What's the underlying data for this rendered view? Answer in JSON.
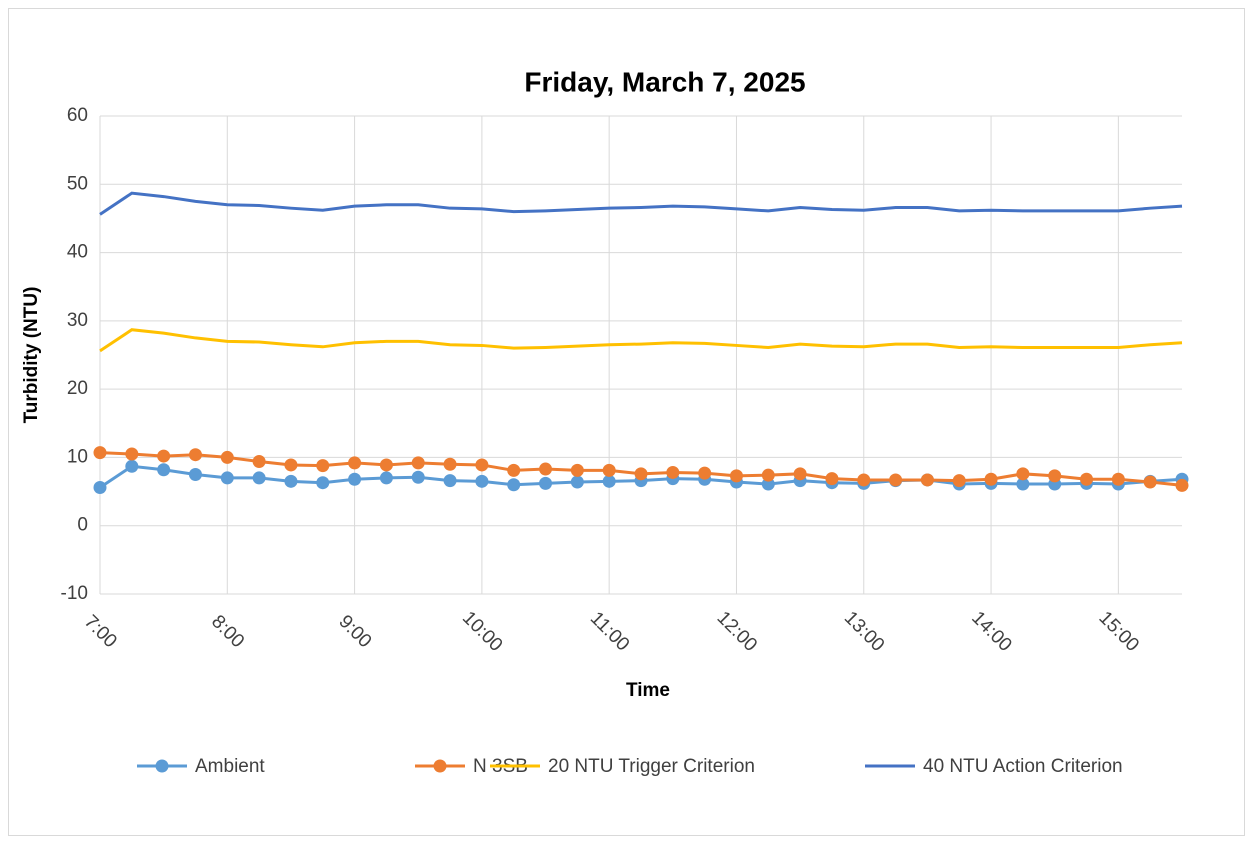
{
  "chart_data": {
    "type": "line",
    "title": "Friday, March 7, 2025",
    "x_label": "Time",
    "y_label": "Turbidity (NTU)",
    "categories": [
      "7:00",
      null,
      null,
      null,
      "8:00",
      null,
      null,
      null,
      "9:00",
      null,
      null,
      null,
      "10:00",
      null,
      null,
      null,
      "11:00",
      null,
      null,
      null,
      "12:00",
      null,
      null,
      null,
      "13:00",
      null,
      null,
      null,
      "14:00",
      null,
      null,
      null,
      "15:00",
      null,
      null
    ],
    "series": [
      {
        "name": "Ambient",
        "color": "#5b9bd5",
        "markers": true,
        "values": [
          5.6,
          8.7,
          8.2,
          7.5,
          7.0,
          7.0,
          6.5,
          6.3,
          6.8,
          7.0,
          7.1,
          6.6,
          6.5,
          6.0,
          6.2,
          6.4,
          6.5,
          6.6,
          6.9,
          6.8,
          6.4,
          6.1,
          6.6,
          6.3,
          6.2,
          6.6,
          6.7,
          6.1,
          6.2,
          6.1,
          6.1,
          6.2,
          6.1,
          6.5,
          6.8
        ]
      },
      {
        "name": "N 3SB",
        "color": "#ed7d31",
        "markers": true,
        "values": [
          10.7,
          10.5,
          10.2,
          10.4,
          10.0,
          9.4,
          8.9,
          8.8,
          9.2,
          8.9,
          9.2,
          9.0,
          8.9,
          8.1,
          8.3,
          8.1,
          8.1,
          7.6,
          7.8,
          7.7,
          7.3,
          7.4,
          7.6,
          6.9,
          6.7,
          6.7,
          6.7,
          6.6,
          6.8,
          7.6,
          7.3,
          6.8,
          6.8,
          6.4,
          5.9
        ]
      },
      {
        "name": "20 NTU Trigger Criterion",
        "color": "#ffc000",
        "markers": false,
        "values": [
          25.6,
          28.7,
          28.2,
          27.5,
          27.0,
          26.9,
          26.5,
          26.2,
          26.8,
          27.0,
          27.0,
          26.5,
          26.4,
          26.0,
          26.1,
          26.3,
          26.5,
          26.6,
          26.8,
          26.7,
          26.4,
          26.1,
          26.6,
          26.3,
          26.2,
          26.6,
          26.6,
          26.1,
          26.2,
          26.1,
          26.1,
          26.1,
          26.1,
          26.5,
          26.8
        ]
      },
      {
        "name": "40 NTU Action Criterion",
        "color": "#4472c4",
        "markers": false,
        "values": [
          45.6,
          48.7,
          48.2,
          47.5,
          47.0,
          46.9,
          46.5,
          46.2,
          46.8,
          47.0,
          47.0,
          46.5,
          46.4,
          46.0,
          46.1,
          46.3,
          46.5,
          46.6,
          46.8,
          46.7,
          46.4,
          46.1,
          46.6,
          46.3,
          46.2,
          46.6,
          46.6,
          46.1,
          46.2,
          46.1,
          46.1,
          46.1,
          46.1,
          46.5,
          46.8
        ]
      }
    ],
    "ylim": [
      -10,
      60
    ],
    "yticks": [
      -10,
      0,
      10,
      20,
      30,
      40,
      50,
      60
    ],
    "grid": true,
    "legend": "bottom"
  }
}
